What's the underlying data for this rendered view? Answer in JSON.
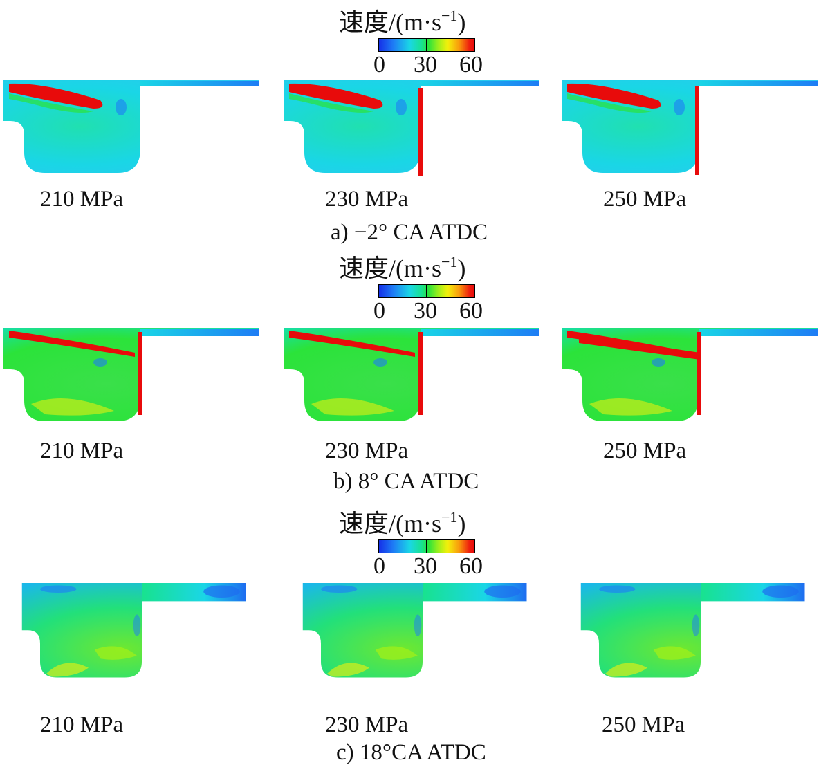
{
  "legend": {
    "title_cn": "速度",
    "title_unit": "/(m·s",
    "title_exp": "−1",
    "title_close": ")",
    "ticks": [
      "0",
      "30",
      "60"
    ]
  },
  "pressures": [
    "210 MPa",
    "230 MPa",
    "250 MPa"
  ],
  "captions": [
    "a) −2° CA ATDC",
    "b) 8° CA ATDC",
    "c) 18°CA ATDC"
  ],
  "colors": {
    "low": "#1530e8",
    "mid_low": "#1ad6e6",
    "mid": "#2be33a",
    "mid_high": "#f4f00b",
    "high": "#e80b0b"
  }
}
